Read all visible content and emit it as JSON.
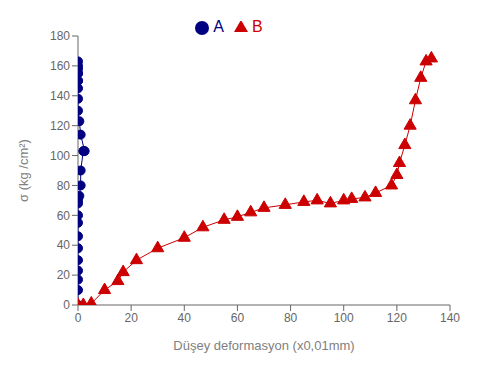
{
  "chart_data": {
    "type": "line",
    "xlabel": "Düşey deformasyon (x0,01mm)",
    "ylabel": "σ (kg /cm²)",
    "xlim": [
      0,
      140
    ],
    "ylim": [
      0,
      180
    ],
    "xticks": [
      0,
      20,
      40,
      60,
      80,
      100,
      120,
      140
    ],
    "yticks": [
      0,
      20,
      40,
      60,
      80,
      100,
      120,
      140,
      160,
      180
    ],
    "grid": false,
    "legend": "upper center",
    "series": [
      {
        "name": "A",
        "color": "#000080",
        "marker": "circle",
        "x": [
          0,
          0,
          0,
          0,
          0,
          0,
          0,
          0,
          0,
          0,
          0,
          0,
          0.5,
          1,
          1,
          2,
          2.5,
          1,
          0.5,
          0,
          0,
          0,
          0,
          0,
          0,
          0,
          0,
          0,
          0
        ],
        "values": [
          0,
          10,
          17,
          23,
          30,
          38,
          46,
          55,
          60,
          68,
          70,
          72,
          73,
          80,
          90,
          103,
          103,
          114,
          123,
          130,
          138,
          145,
          150,
          155,
          158,
          163,
          160,
          155,
          150
        ]
      },
      {
        "name": "B",
        "color": "#CC0000",
        "marker": "triangle",
        "x": [
          0,
          2,
          5,
          10,
          15,
          17,
          22,
          30,
          40,
          47,
          55,
          60,
          65,
          70,
          78,
          85,
          90,
          95,
          100,
          103,
          108,
          112,
          118,
          120,
          121,
          123,
          125,
          127,
          129,
          131,
          133
        ],
        "values": [
          0,
          0,
          1,
          10,
          16,
          22,
          30,
          38,
          45,
          52,
          57,
          59,
          62,
          65,
          67,
          69,
          70,
          68,
          70,
          71,
          72,
          75,
          80,
          87,
          95,
          107,
          120,
          137,
          152,
          163,
          165
        ]
      }
    ]
  }
}
